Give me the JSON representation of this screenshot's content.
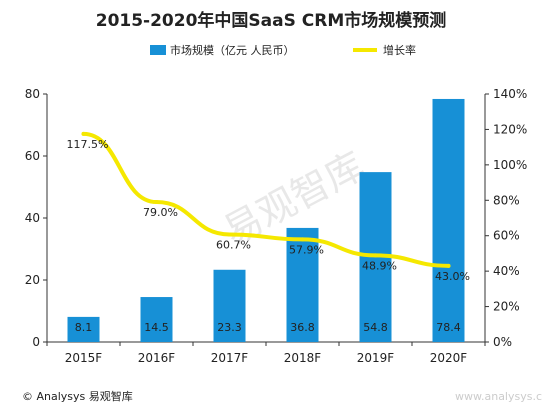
{
  "chart_data": {
    "type": "bar",
    "title": "2015-2020年中国SaaS CRM市场规模预测",
    "categories": [
      "2015F",
      "2016F",
      "2017F",
      "2018F",
      "2019F",
      "2020F"
    ],
    "series": [
      {
        "name": "市场规模（亿元 人民币）",
        "type": "bar",
        "axis": "left",
        "values": [
          8.1,
          14.5,
          23.3,
          36.8,
          54.8,
          78.4
        ],
        "labels": [
          "8.1",
          "14.5",
          "23.3",
          "36.8",
          "54.8",
          "78.4"
        ]
      },
      {
        "name": "增长率",
        "type": "line",
        "axis": "right",
        "values": [
          117.5,
          79.0,
          60.7,
          57.9,
          48.9,
          43.0
        ],
        "labels": [
          "117.5%",
          "79.0%",
          "60.7%",
          "57.9%",
          "48.9%",
          "43.0%"
        ]
      }
    ],
    "y_left": {
      "range": [
        0,
        80
      ],
      "ticks": [
        "0",
        "20",
        "40",
        "60",
        "80"
      ]
    },
    "y_right": {
      "range": [
        0,
        140
      ],
      "ticks": [
        "0%",
        "20%",
        "40%",
        "60%",
        "80%",
        "100%",
        "120%",
        "140%"
      ]
    },
    "grid": false,
    "legend": "top"
  },
  "colors": {
    "bar": "#1790d6",
    "line": "#f5e800",
    "axis": "#333333"
  },
  "source": "© Analysys 易观智库",
  "watermark": "易观智库",
  "watermark_bottom": "www.analysys.cn"
}
